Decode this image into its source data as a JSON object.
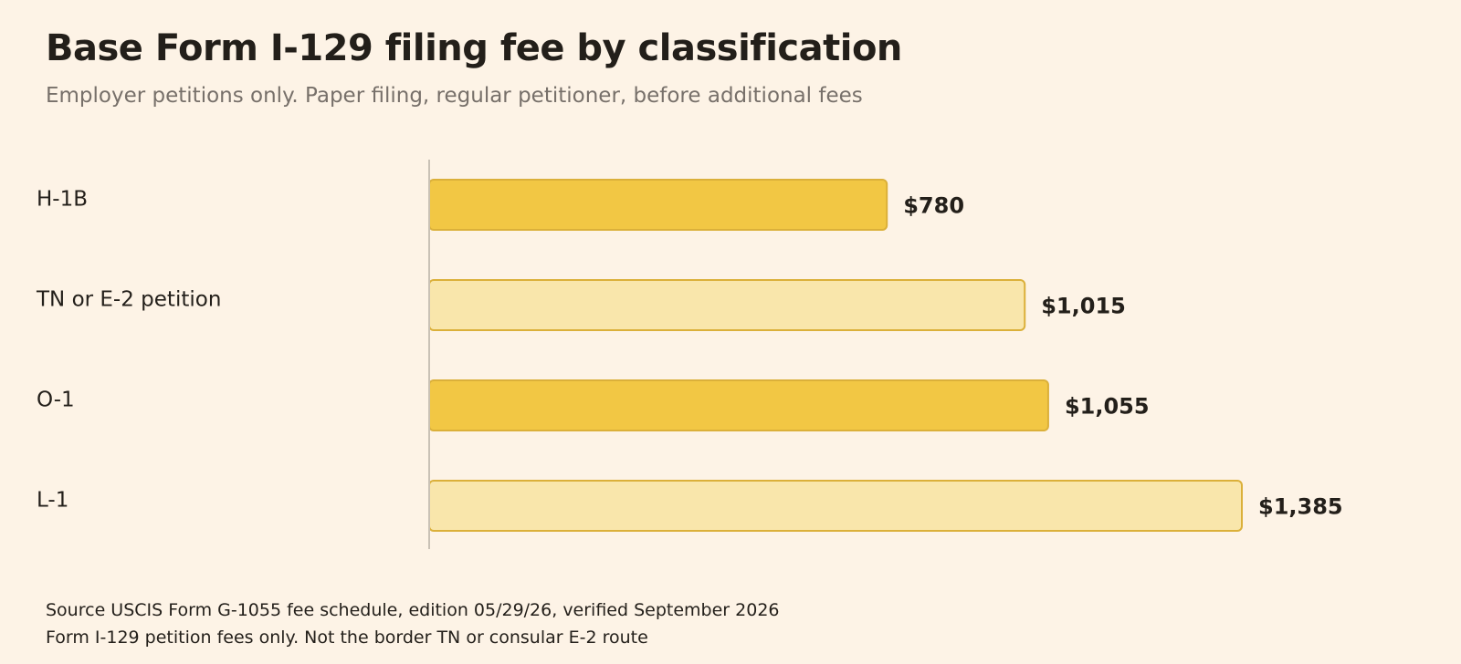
{
  "chart_data": {
    "type": "bar",
    "orientation": "horizontal",
    "title": "Base Form I-129 filing fee by classification",
    "subtitle": "Employer petitions only. Paper filing, regular petitioner, before additional fees",
    "categories": [
      "H-1B",
      "TN or E-2 petition",
      "O-1",
      "L-1"
    ],
    "values": [
      780,
      1015,
      1055,
      1385
    ],
    "value_labels": [
      "$780",
      "$1,015",
      "$1,055",
      "$1,385"
    ],
    "xlim": [
      0,
      1385
    ],
    "grid": false,
    "legend": "none"
  },
  "colors": {
    "bar_strong": "#f2c744",
    "bar_light": "#f9e6ab",
    "bar_stroke": "#dbb03a",
    "axis": "#c9c1b6",
    "background": "#fdf3e6"
  },
  "footnotes": {
    "source": "Source USCIS Form G-1055 fee schedule, edition 05/29/26, verified September 2026",
    "note": "Form I-129 petition fees only. Not the border TN or consular E-2 route"
  }
}
